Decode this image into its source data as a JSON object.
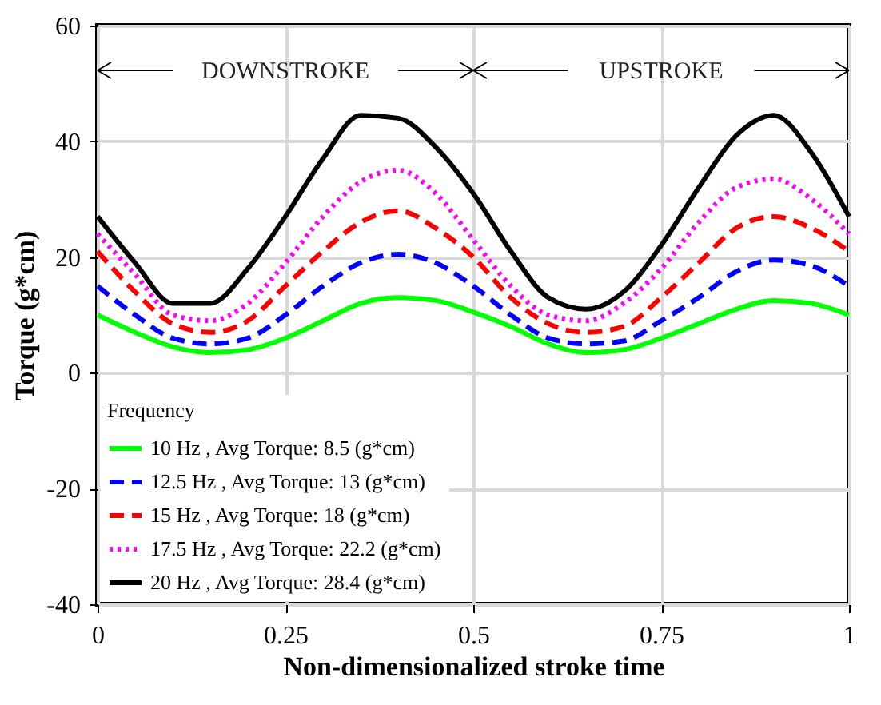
{
  "chart_data": {
    "type": "line",
    "xlabel": "Non-dimensionalized stroke time",
    "ylabel": "Torque (g*cm)",
    "legend_title": "Frequency",
    "x": [
      0,
      0.05,
      0.1,
      0.15,
      0.2,
      0.25,
      0.3,
      0.35,
      0.4,
      0.45,
      0.5,
      0.55,
      0.6,
      0.65,
      0.7,
      0.75,
      0.8,
      0.85,
      0.9,
      0.95,
      1
    ],
    "series": [
      {
        "name": "10 Hz , Avg Torque: 8.5 (g*cm)",
        "color": "#00ff00",
        "line_style": "solid",
        "values": [
          10,
          7,
          4.5,
          3.5,
          4,
          6,
          9,
          12,
          13,
          12.5,
          10.5,
          8,
          5,
          3.5,
          4,
          6,
          8.5,
          11,
          12.5,
          12,
          10
        ]
      },
      {
        "name": "12.5 Hz , Avg Torque: 13 (g*cm)",
        "color": "#0000ff",
        "line_style": "dashed",
        "values": [
          15,
          10,
          6,
          5,
          6,
          10,
          15,
          19,
          20.5,
          19,
          15,
          10,
          6,
          5,
          5.5,
          9,
          13,
          17.5,
          19.5,
          18.5,
          15
        ]
      },
      {
        "name": "15 Hz , Avg Torque: 18 (g*cm)",
        "color": "#ff0000",
        "line_style": "dashed",
        "values": [
          21,
          14,
          8.5,
          7,
          9,
          15,
          21,
          26,
          28,
          25,
          20,
          13,
          8.5,
          7,
          8,
          13,
          19,
          25,
          27,
          25,
          21
        ]
      },
      {
        "name": "17.5 Hz , Avg Torque: 22.2 (g*cm)",
        "color": "#ff00ff",
        "line_style": "dotted",
        "values": [
          24,
          17,
          10,
          9,
          12,
          19,
          27,
          33,
          35,
          31,
          23,
          15,
          10,
          9,
          12,
          18,
          26,
          32,
          33.5,
          30,
          24
        ]
      },
      {
        "name": "20 Hz , Avg Torque: 28.4 (g*cm)",
        "color": "#000000",
        "line_style": "solid",
        "values": [
          27,
          19,
          12,
          12,
          18,
          27,
          37,
          44.5,
          44,
          39,
          31,
          21,
          13,
          11,
          14,
          22,
          32,
          41,
          44.5,
          38,
          27
        ]
      }
    ],
    "annotations": [
      "DOWNSTROKE",
      "UPSTROKE"
    ],
    "xlim": [
      0,
      1
    ],
    "xticks": [
      0,
      0.25,
      0.5,
      0.75,
      1
    ],
    "ylim": [
      -40,
      60
    ],
    "yticks": [
      -40,
      -20,
      0,
      20,
      40,
      60
    ],
    "grid": true,
    "legend": "bottom left"
  }
}
